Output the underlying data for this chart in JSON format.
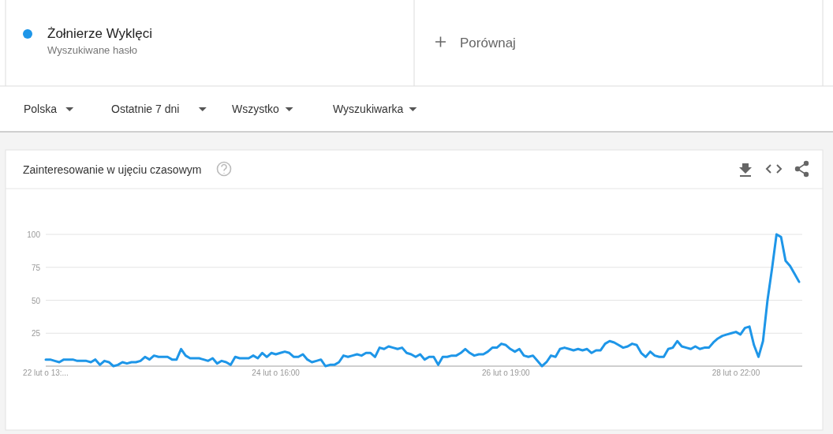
{
  "chart_data": {
    "type": "line",
    "title": "Zainteresowanie w ujęciu czasowym",
    "annotations": [
      "Wyszukiwane hasło",
      "Porównaj",
      "Polska",
      "Ostatnie 7 dni",
      "Wszystko",
      "Wyszukiwarka"
    ],
    "legend": "top left",
    "grid": "y",
    "marker": "none",
    "line_style": "solid",
    "categories": [
      "22 lut o 13:...",
      null,
      null,
      null,
      null,
      null,
      null,
      null,
      null,
      null,
      null,
      null,
      null,
      null,
      null,
      null,
      null,
      null,
      null,
      null,
      null,
      null,
      null,
      null,
      null,
      null,
      null,
      null,
      null,
      null,
      null,
      null,
      null,
      null,
      null,
      null,
      null,
      null,
      null,
      null,
      null,
      null,
      null,
      null,
      null,
      null,
      null,
      null,
      null,
      null,
      null,
      "24 lut o 16:00",
      null,
      null,
      null,
      null,
      null,
      null,
      null,
      null,
      null,
      null,
      null,
      null,
      null,
      null,
      null,
      null,
      null,
      null,
      null,
      null,
      null,
      null,
      null,
      null,
      null,
      null,
      null,
      null,
      null,
      null,
      null,
      null,
      null,
      null,
      null,
      null,
      null,
      null,
      null,
      null,
      null,
      null,
      null,
      null,
      null,
      null,
      null,
      null,
      null,
      null,
      "26 lut o 19:00",
      null,
      null,
      null,
      null,
      null,
      null,
      null,
      null,
      null,
      null,
      null,
      null,
      null,
      null,
      null,
      null,
      null,
      null,
      null,
      null,
      null,
      null,
      null,
      null,
      null,
      null,
      null,
      null,
      null,
      null,
      null,
      null,
      null,
      null,
      null,
      null,
      null,
      null,
      null,
      null,
      null,
      null,
      null,
      null,
      null,
      null,
      null,
      null,
      null,
      null,
      "28 lut o 22:00",
      null,
      null,
      null,
      null,
      null,
      null,
      null,
      null,
      null,
      null,
      null,
      null,
      null,
      null
    ],
    "ylim": [
      0,
      100
    ],
    "yticks": [
      25,
      50,
      75,
      100
    ],
    "series": [
      {
        "name": "Żołnierze Wyklęci",
        "color": "#1e96e8",
        "values": [
          5,
          5,
          4,
          3,
          5,
          5,
          5,
          4,
          4,
          4,
          3,
          5,
          1,
          4,
          3,
          0,
          1,
          3,
          2,
          3,
          3,
          4,
          7,
          5,
          8,
          7,
          7,
          7,
          5,
          5,
          13,
          8,
          6,
          6,
          6,
          5,
          4,
          6,
          2,
          4,
          3,
          1,
          7,
          6,
          6,
          6,
          8,
          6,
          10,
          7,
          10,
          9,
          10,
          11,
          10,
          7,
          7,
          9,
          5,
          3,
          4,
          5,
          0,
          1,
          1,
          3,
          8,
          7,
          8,
          9,
          8,
          10,
          10,
          7,
          14,
          13,
          15,
          14,
          13,
          14,
          10,
          9,
          7,
          9,
          5,
          7,
          7,
          1,
          7,
          7,
          8,
          8,
          10,
          13,
          10,
          8,
          9,
          9,
          11,
          14,
          14,
          17,
          16,
          13,
          11,
          13,
          8,
          7,
          8,
          4,
          0,
          3,
          8,
          7,
          13,
          14,
          13,
          12,
          13,
          12,
          13,
          10,
          12,
          12,
          17,
          19,
          18,
          16,
          14,
          15,
          17,
          16,
          10,
          7,
          11,
          8,
          7,
          7,
          13,
          14,
          19,
          15,
          14,
          13,
          15,
          13,
          14,
          14,
          18,
          21,
          23,
          24,
          25,
          26,
          24,
          29,
          30,
          16,
          7,
          19,
          50,
          74,
          100,
          98,
          80,
          76,
          70,
          64
        ]
      }
    ]
  }
}
